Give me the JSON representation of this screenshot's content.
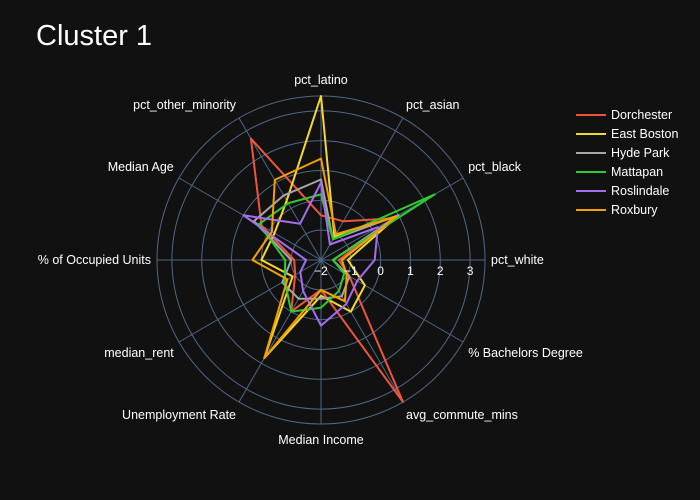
{
  "chart_data": {
    "type": "radar",
    "title": "Cluster 1",
    "axes": [
      "pct_white",
      "pct_black",
      "pct_asian",
      "pct_latino",
      "pct_other_minority",
      "Median Age",
      "% of Occupied Units",
      "median_rent",
      "Unemployment Rate",
      "Median Income",
      "avg_commute_mins",
      "% Bachelors Degree"
    ],
    "radial_range": [
      -2,
      3.5
    ],
    "radial_ticks": [
      -2,
      -1,
      0,
      1,
      2,
      3
    ],
    "grid": true,
    "legend_position": "top-right",
    "series": [
      {
        "name": "Dorchester",
        "color": "#ef553b",
        "values": [
          -1.4,
          0.8,
          -0.5,
          -0.5,
          2.7,
          0.3,
          -1.1,
          -1.0,
          0.0,
          -1.0,
          3.5,
          -0.9
        ]
      },
      {
        "name": "East Boston",
        "color": "#f5d82d",
        "values": [
          -1.1,
          1.0,
          -1.1,
          3.5,
          0.3,
          -0.2,
          0.0,
          -0.9,
          1.8,
          -0.8,
          0.0,
          -0.3
        ]
      },
      {
        "name": "Hyde Park",
        "color": "#a6a6a6",
        "values": [
          -1.6,
          1.0,
          -1.2,
          0.7,
          0.5,
          0.6,
          -1.0,
          -0.5,
          -0.5,
          -0.7,
          -0.6,
          -0.9
        ]
      },
      {
        "name": "Mattapan",
        "color": "#2ecc2e",
        "values": [
          -1.6,
          2.4,
          -1.2,
          0.2,
          0.2,
          0.4,
          -0.8,
          -0.6,
          0.0,
          -0.4,
          -0.8,
          -1.1
        ]
      },
      {
        "name": "Roslindale",
        "color": "#a56cf0",
        "values": [
          -0.2,
          0.2,
          -1.4,
          0.6,
          -0.6,
          1.0,
          -1.5,
          -1.2,
          -0.8,
          0.2,
          -0.3,
          -0.6
        ]
      },
      {
        "name": "Roxbury",
        "color": "#f5a000",
        "values": [
          -1.3,
          0.9,
          -1.0,
          1.4,
          1.1,
          -0.1,
          0.3,
          -0.7,
          1.8,
          -1.0,
          -0.4,
          -1.0
        ]
      }
    ]
  }
}
